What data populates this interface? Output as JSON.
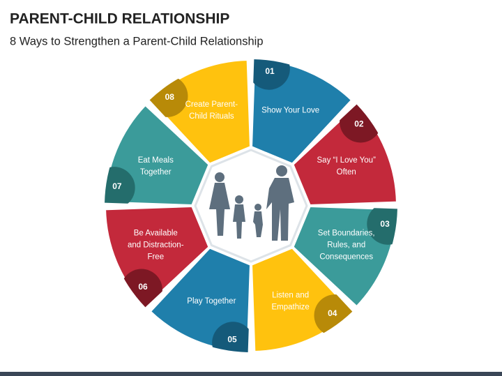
{
  "header": {
    "title": "PARENT-CHILD RELATIONSHIP",
    "subtitle": "8 Ways to Strengthen a Parent-Child Relationship"
  },
  "segments": [
    {
      "number": "01",
      "lines": [
        "Show Your Love"
      ],
      "color": "#1f7fab",
      "dark": "#155a7a"
    },
    {
      "number": "02",
      "lines": [
        "Say “I Love You”",
        "Often"
      ],
      "color": "#c3293b",
      "dark": "#7d1824"
    },
    {
      "number": "03",
      "lines": [
        "Set Boundaries,",
        "Rules, and",
        "Consequences"
      ],
      "color": "#3b9b9a",
      "dark": "#246d6c"
    },
    {
      "number": "04",
      "lines": [
        "Listen and",
        "Empathize"
      ],
      "color": "#ffc20e",
      "dark": "#b88a08"
    },
    {
      "number": "05",
      "lines": [
        "Play Together"
      ],
      "color": "#1f7fab",
      "dark": "#155a7a"
    },
    {
      "number": "06",
      "lines": [
        "Be Available",
        "and Distraction-",
        "Free"
      ],
      "color": "#c3293b",
      "dark": "#7d1824"
    },
    {
      "number": "07",
      "lines": [
        "Eat Meals",
        "Together"
      ],
      "color": "#3b9b9a",
      "dark": "#246d6c"
    },
    {
      "number": "08",
      "lines": [
        "Create Parent-",
        "Child Rituals"
      ],
      "color": "#ffc20e",
      "dark": "#b88a08"
    }
  ]
}
